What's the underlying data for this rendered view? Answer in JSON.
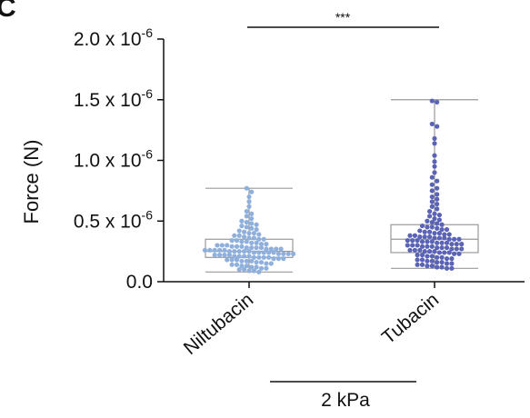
{
  "panel_letter": "C",
  "chart_data": {
    "type": "scatter",
    "subtype": "beeswarm-with-boxplot",
    "ylabel": "Force (N)",
    "ylim": [
      0,
      2e-06
    ],
    "yticks": [
      {
        "value": 0.0,
        "label": "0.0",
        "exp": ""
      },
      {
        "value": 5e-07,
        "label": "0.5 x 10",
        "exp": "-6"
      },
      {
        "value": 1e-06,
        "label": "1.0 x 10",
        "exp": "-6"
      },
      {
        "value": 1.5e-06,
        "label": "1.5 x 10",
        "exp": "-6"
      },
      {
        "value": 2e-06,
        "label": "2.0 x 10",
        "exp": "-6"
      }
    ],
    "categories": [
      "Niltubacin",
      "Tubacin"
    ],
    "group_label": "2 kPa",
    "significance": {
      "label": "***",
      "between": [
        "Niltubacin",
        "Tubacin"
      ]
    },
    "colors": {
      "Niltubacin": "#8fb0dd",
      "Tubacin": "#5a63b5",
      "box": "#999999"
    },
    "series": [
      {
        "name": "Niltubacin",
        "box": {
          "min": 8e-08,
          "q1": 2e-07,
          "median": 2.5e-07,
          "q3": 3.5e-07,
          "max": 7.7e-07
        },
        "values": [
          7.7e-07,
          7.4e-07,
          7e-07,
          6.6e-07,
          6.2e-07,
          5.8e-07,
          5.6e-07,
          5.4e-07,
          5.2e-07,
          5e-07,
          4.9e-07,
          4.8e-07,
          4.7e-07,
          4.6e-07,
          4.5e-07,
          4.4e-07,
          4.3e-07,
          4.2e-07,
          4.1e-07,
          4e-07,
          4e-07,
          3.9e-07,
          3.8e-07,
          3.8e-07,
          3.7e-07,
          3.6e-07,
          3.6e-07,
          3.5e-07,
          3.5e-07,
          3.4e-07,
          3.4e-07,
          3.3e-07,
          3.3e-07,
          3.2e-07,
          3.2e-07,
          3.1e-07,
          3.1e-07,
          3e-07,
          3e-07,
          3e-07,
          2.9e-07,
          2.9e-07,
          2.9e-07,
          2.8e-07,
          2.8e-07,
          2.8e-07,
          2.8e-07,
          2.7e-07,
          2.7e-07,
          2.7e-07,
          2.7e-07,
          2.6e-07,
          2.6e-07,
          2.6e-07,
          2.6e-07,
          2.6e-07,
          2.5e-07,
          2.5e-07,
          2.5e-07,
          2.5e-07,
          2.5e-07,
          2.4e-07,
          2.4e-07,
          2.4e-07,
          2.4e-07,
          2.4e-07,
          2.3e-07,
          2.3e-07,
          2.3e-07,
          2.3e-07,
          2.2e-07,
          2.2e-07,
          2.2e-07,
          2.2e-07,
          2.1e-07,
          2.1e-07,
          2.1e-07,
          2.1e-07,
          2e-07,
          2e-07,
          2e-07,
          2e-07,
          1.9e-07,
          1.9e-07,
          1.9e-07,
          1.8e-07,
          1.8e-07,
          1.8e-07,
          1.7e-07,
          1.7e-07,
          1.7e-07,
          1.6e-07,
          1.6e-07,
          1.5e-07,
          1.5e-07,
          1.4e-07,
          1.4e-07,
          1.3e-07,
          1.3e-07,
          1.2e-07,
          1.2e-07,
          1.1e-07,
          1.1e-07,
          1e-07,
          1e-07,
          9e-08,
          9e-08,
          8e-08
        ]
      },
      {
        "name": "Tubacin",
        "box": {
          "min": 1.1e-07,
          "q1": 2.4e-07,
          "median": 3.5e-07,
          "q3": 4.7e-07,
          "max": 1.5e-06
        },
        "values": [
          1.49e-06,
          1.48e-06,
          1.3e-06,
          1.28e-06,
          1.18e-06,
          1.14e-06,
          1.04e-06,
          9.9e-07,
          9.5e-07,
          9e-07,
          8.6e-07,
          8.3e-07,
          8e-07,
          7.7e-07,
          7.5e-07,
          7.2e-07,
          7e-07,
          6.8e-07,
          6.6e-07,
          6.4e-07,
          6.2e-07,
          6e-07,
          5.8e-07,
          5.6e-07,
          5.5e-07,
          5.4e-07,
          5.2e-07,
          5.1e-07,
          5e-07,
          4.9e-07,
          4.8e-07,
          4.7e-07,
          4.6e-07,
          4.5e-07,
          4.5e-07,
          4.4e-07,
          4.3e-07,
          4.3e-07,
          4.2e-07,
          4.1e-07,
          4.1e-07,
          4e-07,
          4e-07,
          3.9e-07,
          3.9e-07,
          3.8e-07,
          3.8e-07,
          3.7e-07,
          3.7e-07,
          3.7e-07,
          3.6e-07,
          3.6e-07,
          3.6e-07,
          3.5e-07,
          3.5e-07,
          3.5e-07,
          3.4e-07,
          3.4e-07,
          3.4e-07,
          3.3e-07,
          3.3e-07,
          3.3e-07,
          3.2e-07,
          3.2e-07,
          3.2e-07,
          3.1e-07,
          3.1e-07,
          3.1e-07,
          3e-07,
          3e-07,
          3e-07,
          2.9e-07,
          2.9e-07,
          2.9e-07,
          2.8e-07,
          2.8e-07,
          2.8e-07,
          2.7e-07,
          2.7e-07,
          2.7e-07,
          2.6e-07,
          2.6e-07,
          2.6e-07,
          2.5e-07,
          2.5e-07,
          2.5e-07,
          2.4e-07,
          2.4e-07,
          2.4e-07,
          2.3e-07,
          2.3e-07,
          2.2e-07,
          2.2e-07,
          2.1e-07,
          2.1e-07,
          2e-07,
          2e-07,
          1.9e-07,
          1.9e-07,
          1.8e-07,
          1.8e-07,
          1.7e-07,
          1.7e-07,
          1.6e-07,
          1.6e-07,
          1.5e-07,
          1.5e-07,
          1.4e-07,
          1.4e-07,
          1.3e-07,
          1.3e-07,
          1.2e-07,
          1.2e-07,
          1.1e-07,
          1.1e-07
        ]
      }
    ]
  }
}
